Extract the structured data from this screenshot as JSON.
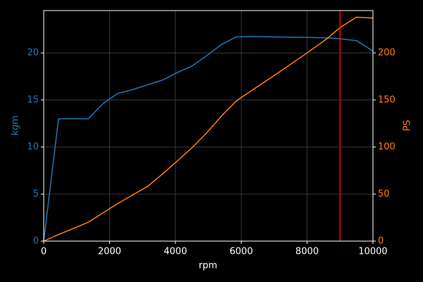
{
  "chart_data": {
    "type": "line",
    "xlabel": "rpm",
    "ylabel": "kgm",
    "y2label": "PS",
    "x": [
      0,
      450,
      1350,
      1800,
      2250,
      2700,
      3150,
      3600,
      4050,
      4500,
      4950,
      5400,
      5850,
      6400,
      7000,
      8000,
      8600,
      9000,
      9500,
      10000
    ],
    "series": [
      {
        "color": "#1f77b4",
        "axis": "y",
        "values": [
          0,
          13,
          13,
          14.6,
          15.7,
          16.1,
          16.6,
          17.1,
          17.9,
          18.6,
          19.7,
          20.9,
          21.7,
          21.75,
          21.7,
          21.65,
          21.6,
          21.5,
          21.3,
          20.2
        ]
      },
      {
        "color": "#ff7f0e",
        "axis": "y2",
        "values": [
          0,
          7,
          20,
          30,
          40,
          49,
          58,
          71,
          85,
          99,
          115,
          133,
          149,
          162,
          176,
          200,
          215,
          227,
          238,
          237
        ]
      }
    ],
    "vline": 9000,
    "vline_color": "#ff0000",
    "xlim": [
      0,
      10000
    ],
    "xticks": [
      0,
      2000,
      4000,
      6000,
      8000,
      10000
    ],
    "ylim": [
      0,
      24.5
    ],
    "yticks": [
      0,
      5,
      10,
      15,
      20
    ],
    "y2lim": [
      0,
      245
    ],
    "y2ticks": [
      0,
      50,
      100,
      150,
      200
    ],
    "grid": true
  }
}
